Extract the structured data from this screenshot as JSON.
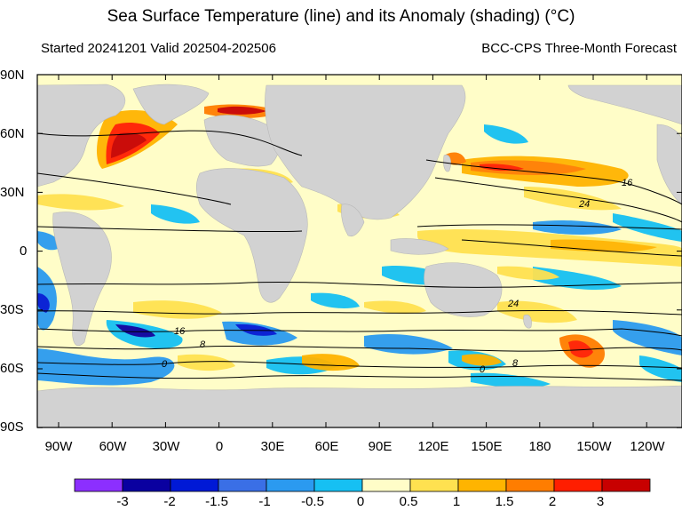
{
  "title": "Sea Surface Temperature (line) and its Anomaly (shading) (°C)",
  "subtitle_left": "Started 20241201  Valid 202504-202506",
  "subtitle_right": "BCC-CPS Three-Month Forecast",
  "lat_labels": [
    "90N",
    "60N",
    "30N",
    "0",
    "30S",
    "60S",
    "90S"
  ],
  "lon_labels": [
    "90W",
    "60W",
    "30W",
    "0",
    "30E",
    "60E",
    "90E",
    "120E",
    "150E",
    "180",
    "150W",
    "120W"
  ],
  "contour_labels": [
    "16",
    "24",
    "24",
    "16",
    "8",
    "0",
    "0",
    "8"
  ],
  "colorbar": {
    "labels": [
      "-3",
      "-2",
      "-1.5",
      "-1",
      "-0.5",
      "0",
      "0.5",
      "1",
      "1.5",
      "2",
      "3"
    ],
    "colors": [
      "#8c2fff",
      "#0a00a0",
      "#0019d6",
      "#3a6fe6",
      "#2b9af0",
      "#16c0f3",
      "#fffdc8",
      "#ffe150",
      "#ffb400",
      "#ff7d00",
      "#ff1e00",
      "#c80000"
    ]
  },
  "colors": {
    "land": "#d2d2d2",
    "ocean_neutral": "#fffdc8",
    "frame": "#000000"
  }
}
